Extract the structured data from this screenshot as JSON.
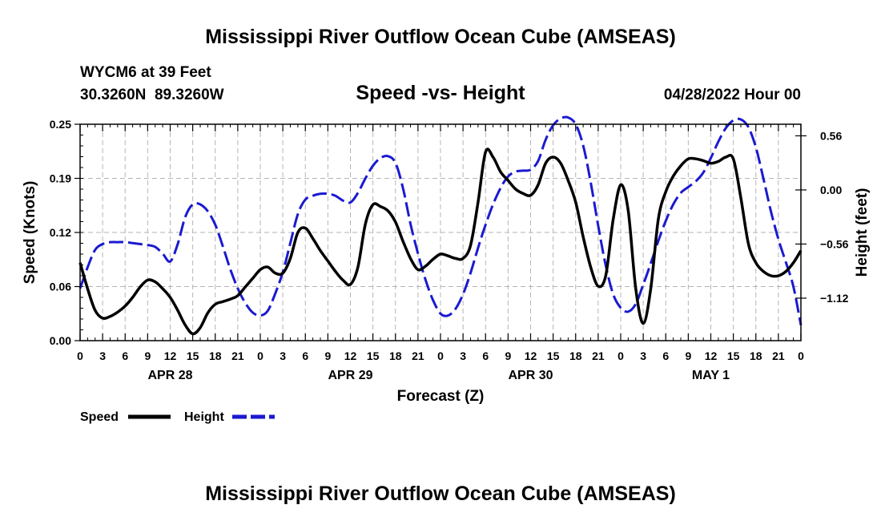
{
  "page": {
    "title": "Mississippi River Outflow Ocean Cube (AMSEAS)",
    "footer_title": "Mississippi River Outflow Ocean Cube (AMSEAS)"
  },
  "station": {
    "name_line": "WYCM6 at 39 Feet",
    "coords_line": "30.3260N  89.3260W",
    "date_line": "04/28/2022 Hour 00"
  },
  "chart_data": {
    "type": "line",
    "title": "Speed -vs- Height",
    "xlabel": "Forecast (Z)",
    "ylabel": "Speed (Knots)",
    "y2label": "Height (feet)",
    "x_range": [
      0,
      96
    ],
    "ylim": [
      0,
      0.25
    ],
    "y2lim": [
      -1.56,
      0.68
    ],
    "grid": true,
    "x_ticks": [
      {
        "x": 0,
        "label": "0"
      },
      {
        "x": 3,
        "label": "3"
      },
      {
        "x": 6,
        "label": "6"
      },
      {
        "x": 9,
        "label": "9"
      },
      {
        "x": 12,
        "label": "12"
      },
      {
        "x": 15,
        "label": "15"
      },
      {
        "x": 18,
        "label": "18"
      },
      {
        "x": 21,
        "label": "21"
      },
      {
        "x": 24,
        "label": "0"
      },
      {
        "x": 27,
        "label": "3"
      },
      {
        "x": 30,
        "label": "6"
      },
      {
        "x": 33,
        "label": "9"
      },
      {
        "x": 36,
        "label": "12"
      },
      {
        "x": 39,
        "label": "15"
      },
      {
        "x": 42,
        "label": "18"
      },
      {
        "x": 45,
        "label": "21"
      },
      {
        "x": 48,
        "label": "0"
      },
      {
        "x": 51,
        "label": "3"
      },
      {
        "x": 54,
        "label": "6"
      },
      {
        "x": 57,
        "label": "9"
      },
      {
        "x": 60,
        "label": "12"
      },
      {
        "x": 63,
        "label": "15"
      },
      {
        "x": 66,
        "label": "18"
      },
      {
        "x": 69,
        "label": "21"
      },
      {
        "x": 72,
        "label": "0"
      },
      {
        "x": 75,
        "label": "3"
      },
      {
        "x": 78,
        "label": "6"
      },
      {
        "x": 81,
        "label": "9"
      },
      {
        "x": 84,
        "label": "12"
      },
      {
        "x": 87,
        "label": "15"
      },
      {
        "x": 90,
        "label": "18"
      },
      {
        "x": 93,
        "label": "21"
      },
      {
        "x": 96,
        "label": "0"
      }
    ],
    "day_labels": [
      {
        "x": 12,
        "label": "APR 28"
      },
      {
        "x": 36,
        "label": "APR 29"
      },
      {
        "x": 60,
        "label": "APR 30"
      },
      {
        "x": 84,
        "label": "MAY 1"
      }
    ],
    "y_ticks": [
      {
        "value": 0,
        "label": "0.00"
      },
      {
        "value": 0.0625,
        "label": "0.06"
      },
      {
        "value": 0.125,
        "label": "0.12"
      },
      {
        "value": 0.1875,
        "label": "0.19"
      },
      {
        "value": 0.25,
        "label": "0.25"
      }
    ],
    "y2_ticks": [
      {
        "value": 0.56,
        "label": "0.56"
      },
      {
        "value": 0.0,
        "label": "0.00"
      },
      {
        "value": -0.56,
        "label": "−0.56"
      },
      {
        "value": -1.12,
        "label": "−1.12"
      }
    ],
    "series": [
      {
        "name": "Speed",
        "axis": "left",
        "color": "#000000",
        "style": "solid",
        "points": [
          [
            0,
            0.09
          ],
          [
            1,
            0.06
          ],
          [
            2,
            0.035
          ],
          [
            3,
            0.026
          ],
          [
            4,
            0.028
          ],
          [
            5,
            0.033
          ],
          [
            6,
            0.04
          ],
          [
            7,
            0.05
          ],
          [
            8,
            0.062
          ],
          [
            9,
            0.07
          ],
          [
            10,
            0.068
          ],
          [
            11,
            0.06
          ],
          [
            12,
            0.05
          ],
          [
            13,
            0.035
          ],
          [
            14,
            0.018
          ],
          [
            15,
            0.008
          ],
          [
            16,
            0.015
          ],
          [
            17,
            0.032
          ],
          [
            18,
            0.042
          ],
          [
            19,
            0.045
          ],
          [
            20,
            0.048
          ],
          [
            21,
            0.052
          ],
          [
            22,
            0.062
          ],
          [
            23,
            0.072
          ],
          [
            24,
            0.082
          ],
          [
            25,
            0.085
          ],
          [
            26,
            0.078
          ],
          [
            27,
            0.078
          ],
          [
            28,
            0.095
          ],
          [
            29,
            0.125
          ],
          [
            30,
            0.13
          ],
          [
            31,
            0.118
          ],
          [
            32,
            0.104
          ],
          [
            33,
            0.092
          ],
          [
            34,
            0.08
          ],
          [
            35,
            0.07
          ],
          [
            36,
            0.065
          ],
          [
            37,
            0.085
          ],
          [
            38,
            0.135
          ],
          [
            39,
            0.157
          ],
          [
            40,
            0.155
          ],
          [
            41,
            0.15
          ],
          [
            42,
            0.137
          ],
          [
            43,
            0.115
          ],
          [
            44,
            0.095
          ],
          [
            45,
            0.082
          ],
          [
            46,
            0.086
          ],
          [
            47,
            0.094
          ],
          [
            48,
            0.1
          ],
          [
            49,
            0.098
          ],
          [
            50,
            0.095
          ],
          [
            51,
            0.095
          ],
          [
            52,
            0.11
          ],
          [
            53,
            0.16
          ],
          [
            54,
            0.218
          ],
          [
            55,
            0.212
          ],
          [
            56,
            0.195
          ],
          [
            57,
            0.185
          ],
          [
            58,
            0.175
          ],
          [
            59,
            0.17
          ],
          [
            60,
            0.168
          ],
          [
            61,
            0.18
          ],
          [
            62,
            0.205
          ],
          [
            63,
            0.212
          ],
          [
            64,
            0.205
          ],
          [
            65,
            0.185
          ],
          [
            66,
            0.16
          ],
          [
            67,
            0.12
          ],
          [
            68,
            0.085
          ],
          [
            69,
            0.063
          ],
          [
            70,
            0.075
          ],
          [
            71,
            0.14
          ],
          [
            72,
            0.18
          ],
          [
            73,
            0.15
          ],
          [
            74,
            0.06
          ],
          [
            75,
            0.02
          ],
          [
            76,
            0.06
          ],
          [
            77,
            0.14
          ],
          [
            78,
            0.172
          ],
          [
            79,
            0.19
          ],
          [
            80,
            0.202
          ],
          [
            81,
            0.21
          ],
          [
            82,
            0.21
          ],
          [
            83,
            0.208
          ],
          [
            84,
            0.205
          ],
          [
            85,
            0.207
          ],
          [
            86,
            0.212
          ],
          [
            87,
            0.21
          ],
          [
            88,
            0.165
          ],
          [
            89,
            0.112
          ],
          [
            90,
            0.09
          ],
          [
            91,
            0.08
          ],
          [
            92,
            0.075
          ],
          [
            93,
            0.075
          ],
          [
            94,
            0.08
          ],
          [
            95,
            0.09
          ],
          [
            96,
            0.104
          ]
        ]
      },
      {
        "name": "Height",
        "axis": "right",
        "color": "#1a1ad0",
        "style": "dashed",
        "points": [
          [
            0,
            -1.02
          ],
          [
            1,
            -0.8
          ],
          [
            2,
            -0.62
          ],
          [
            3,
            -0.56
          ],
          [
            4,
            -0.54
          ],
          [
            5,
            -0.54
          ],
          [
            6,
            -0.54
          ],
          [
            7,
            -0.55
          ],
          [
            8,
            -0.56
          ],
          [
            9,
            -0.57
          ],
          [
            10,
            -0.59
          ],
          [
            11,
            -0.66
          ],
          [
            12,
            -0.74
          ],
          [
            13,
            -0.56
          ],
          [
            14,
            -0.28
          ],
          [
            15,
            -0.15
          ],
          [
            16,
            -0.15
          ],
          [
            17,
            -0.22
          ],
          [
            18,
            -0.36
          ],
          [
            19,
            -0.58
          ],
          [
            20,
            -0.82
          ],
          [
            21,
            -1.02
          ],
          [
            22,
            -1.17
          ],
          [
            23,
            -1.27
          ],
          [
            24,
            -1.3
          ],
          [
            25,
            -1.25
          ],
          [
            26,
            -1.07
          ],
          [
            27,
            -0.85
          ],
          [
            28,
            -0.55
          ],
          [
            29,
            -0.25
          ],
          [
            30,
            -0.1
          ],
          [
            31,
            -0.06
          ],
          [
            32,
            -0.04
          ],
          [
            33,
            -0.04
          ],
          [
            34,
            -0.06
          ],
          [
            35,
            -0.11
          ],
          [
            36,
            -0.13
          ],
          [
            37,
            -0.03
          ],
          [
            38,
            0.12
          ],
          [
            39,
            0.25
          ],
          [
            40,
            0.33
          ],
          [
            41,
            0.35
          ],
          [
            42,
            0.28
          ],
          [
            43,
            0.02
          ],
          [
            44,
            -0.35
          ],
          [
            45,
            -0.66
          ],
          [
            46,
            -0.93
          ],
          [
            47,
            -1.14
          ],
          [
            48,
            -1.28
          ],
          [
            49,
            -1.3
          ],
          [
            50,
            -1.23
          ],
          [
            51,
            -1.08
          ],
          [
            52,
            -0.86
          ],
          [
            53,
            -0.6
          ],
          [
            54,
            -0.36
          ],
          [
            55,
            -0.15
          ],
          [
            56,
            0.02
          ],
          [
            57,
            0.14
          ],
          [
            58,
            0.19
          ],
          [
            59,
            0.2
          ],
          [
            60,
            0.21
          ],
          [
            61,
            0.3
          ],
          [
            62,
            0.52
          ],
          [
            63,
            0.67
          ],
          [
            64,
            0.74
          ],
          [
            65,
            0.75
          ],
          [
            66,
            0.68
          ],
          [
            67,
            0.46
          ],
          [
            68,
            0.08
          ],
          [
            69,
            -0.37
          ],
          [
            70,
            -0.78
          ],
          [
            71,
            -1.08
          ],
          [
            72,
            -1.22
          ],
          [
            73,
            -1.26
          ],
          [
            74,
            -1.18
          ],
          [
            75,
            -0.98
          ],
          [
            76,
            -0.76
          ],
          [
            77,
            -0.53
          ],
          [
            78,
            -0.32
          ],
          [
            79,
            -0.15
          ],
          [
            80,
            -0.03
          ],
          [
            81,
            0.03
          ],
          [
            82,
            0.09
          ],
          [
            83,
            0.18
          ],
          [
            84,
            0.33
          ],
          [
            85,
            0.5
          ],
          [
            86,
            0.64
          ],
          [
            87,
            0.72
          ],
          [
            88,
            0.73
          ],
          [
            89,
            0.65
          ],
          [
            90,
            0.44
          ],
          [
            91,
            0.12
          ],
          [
            92,
            -0.22
          ],
          [
            93,
            -0.51
          ],
          [
            94,
            -0.75
          ],
          [
            95,
            -1.0
          ],
          [
            96,
            -1.4
          ]
        ]
      }
    ],
    "legend": [
      {
        "label": "Speed",
        "color": "#000000",
        "style": "solid"
      },
      {
        "label": "Height",
        "color": "#1a1ad0",
        "style": "dashed"
      }
    ]
  }
}
